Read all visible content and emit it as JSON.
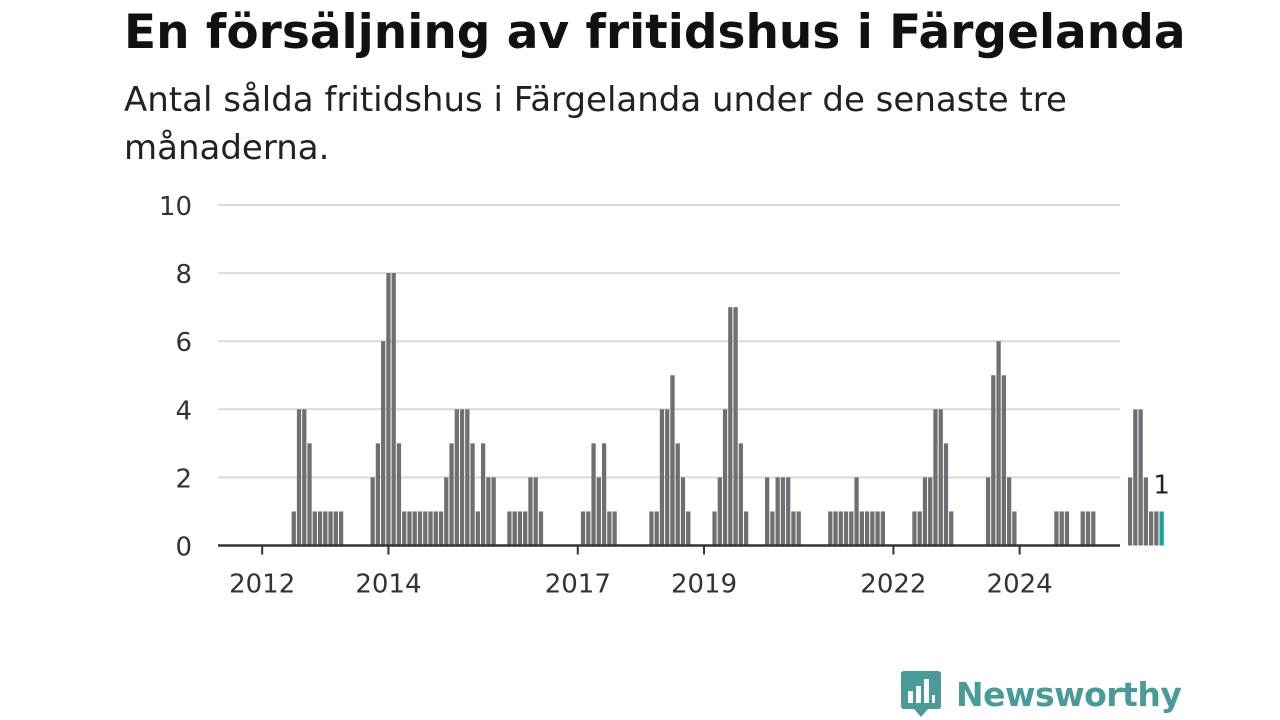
{
  "title": "En försäljning av fritidshus i Färgelanda",
  "subtitle": "Antal sålda fritidshus i Färgelanda under de senaste tre månaderna.",
  "brand": {
    "name": "Newsworthy",
    "color": "#4a9a98",
    "icon": "bar-chart-bubble-icon"
  },
  "chart_data": {
    "type": "bar",
    "title": "En försäljning av fritidshus i Färgelanda",
    "subtitle": "Antal sålda fritidshus i Färgelanda under de senaste tre månaderna.",
    "xlabel": "",
    "ylabel": "",
    "ylim": [
      0,
      10
    ],
    "yticks": [
      "0",
      "2",
      "4",
      "6",
      "8",
      "10"
    ],
    "xticks": [
      "2012",
      "2014",
      "2017",
      "2019",
      "2022",
      "2024"
    ],
    "grid": true,
    "bar_color": "#6e6e73",
    "highlight_color": "#1aa39a",
    "highlight_label": "1",
    "start_month": "2011-07",
    "values": [
      0,
      0,
      0,
      0,
      0,
      0,
      0,
      0,
      0,
      0,
      0,
      0,
      1,
      4,
      4,
      3,
      1,
      1,
      1,
      1,
      1,
      1,
      0,
      0,
      0,
      0,
      0,
      2,
      3,
      6,
      8,
      8,
      3,
      1,
      1,
      1,
      1,
      1,
      1,
      1,
      1,
      2,
      3,
      4,
      4,
      4,
      3,
      1,
      3,
      2,
      2,
      0,
      0,
      1,
      1,
      1,
      1,
      2,
      2,
      1,
      0,
      0,
      0,
      0,
      0,
      0,
      0,
      1,
      1,
      3,
      2,
      3,
      1,
      1,
      0,
      0,
      0,
      0,
      0,
      0,
      1,
      1,
      4,
      4,
      5,
      3,
      2,
      1,
      0,
      0,
      0,
      0,
      1,
      2,
      4,
      7,
      7,
      3,
      1,
      0,
      0,
      0,
      2,
      1,
      2,
      2,
      2,
      1,
      1,
      0,
      0,
      0,
      0,
      0,
      1,
      1,
      1,
      1,
      1,
      2,
      1,
      1,
      1,
      1,
      1,
      0,
      0,
      0,
      0,
      0,
      1,
      1,
      2,
      2,
      4,
      4,
      3,
      1,
      0,
      0,
      0,
      0,
      0,
      0,
      2,
      5,
      6,
      5,
      2,
      1,
      0,
      0,
      0,
      0,
      0,
      0,
      0,
      1,
      1,
      1,
      0,
      0,
      1,
      1,
      1,
      0,
      0,
      0,
      0,
      0,
      0,
      2,
      4,
      4,
      2,
      1,
      1,
      1
    ]
  }
}
